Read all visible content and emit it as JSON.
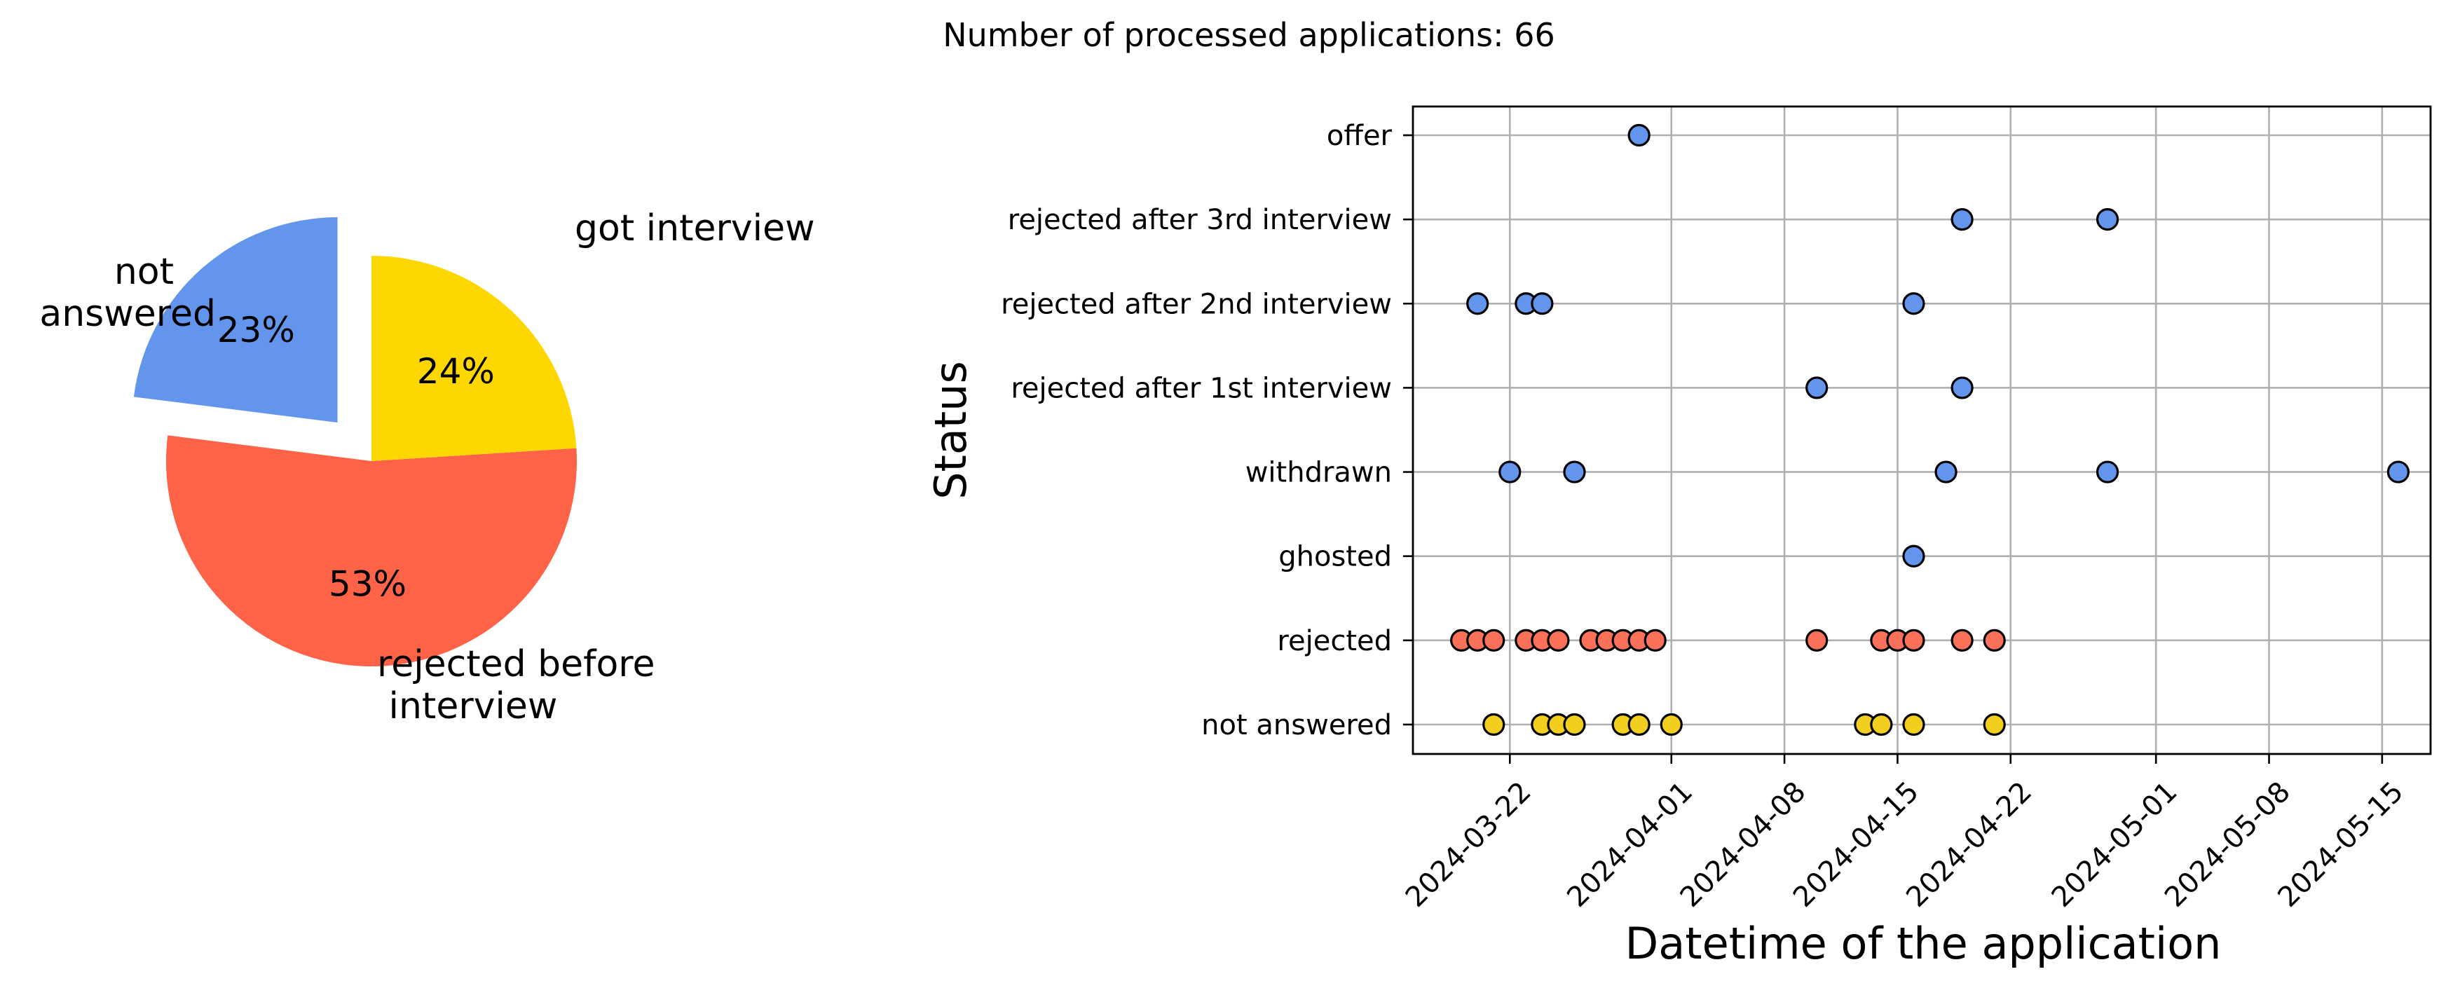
{
  "suptitle": "Number of processed applications: 66",
  "colors": {
    "got_interview": "#6495ED",
    "rejected": "#FF6347",
    "not_answered": "#FFD700",
    "scatter_rejected": "#FA7058",
    "scatter_not_answered": "#F2CE1F"
  },
  "chart_data": [
    {
      "type": "pie",
      "categories": [
        "got interview",
        "rejected before interview",
        "not answered"
      ],
      "category_lines": [
        [
          "got interview"
        ],
        [
          "rejected before",
          " interview"
        ],
        [
          "not",
          "answered"
        ]
      ],
      "values": [
        23,
        53,
        24
      ],
      "value_labels": [
        "23%",
        "53%",
        "24%"
      ],
      "exploded": [
        "got interview"
      ],
      "colors": [
        "#6495ED",
        "#FF6347",
        "#FFD700"
      ]
    },
    {
      "type": "scatter",
      "xlabel": "Datetime of the application",
      "ylabel": "Status",
      "grid": true,
      "xlim": [
        "2024-03-16",
        "2024-05-18"
      ],
      "x_ticks": [
        "2024-03-22",
        "2024-04-01",
        "2024-04-08",
        "2024-04-15",
        "2024-04-22",
        "2024-05-01",
        "2024-05-08",
        "2024-05-15"
      ],
      "y_categories": [
        "not answered",
        "rejected",
        "ghosted",
        "withdrawn",
        "rejected after 1st interview",
        "rejected after 2nd interview",
        "rejected after 3rd interview",
        "offer"
      ],
      "series": [
        {
          "category": "offer",
          "color": "#6495ED",
          "x": [
            "2024-03-30"
          ]
        },
        {
          "category": "rejected after 3rd interview",
          "color": "#6495ED",
          "x": [
            "2024-04-19",
            "2024-04-28"
          ]
        },
        {
          "category": "rejected after 2nd interview",
          "color": "#6495ED",
          "x": [
            "2024-03-20",
            "2024-03-23",
            "2024-03-24",
            "2024-04-16"
          ]
        },
        {
          "category": "rejected after 1st interview",
          "color": "#6495ED",
          "x": [
            "2024-04-10",
            "2024-04-19"
          ]
        },
        {
          "category": "withdrawn",
          "color": "#6495ED",
          "x": [
            "2024-03-22",
            "2024-03-26",
            "2024-04-18",
            "2024-04-28",
            "2024-05-16"
          ]
        },
        {
          "category": "ghosted",
          "color": "#6495ED",
          "x": [
            "2024-04-16"
          ]
        },
        {
          "category": "rejected",
          "color": "#FA7058",
          "x": [
            "2024-03-19",
            "2024-03-20",
            "2024-03-21",
            "2024-03-23",
            "2024-03-24",
            "2024-03-25",
            "2024-03-27",
            "2024-03-28",
            "2024-03-29",
            "2024-03-30",
            "2024-03-31",
            "2024-04-10",
            "2024-04-14",
            "2024-04-15",
            "2024-04-16",
            "2024-04-19",
            "2024-04-21"
          ]
        },
        {
          "category": "not answered",
          "color": "#F2CE1F",
          "x": [
            "2024-03-21",
            "2024-03-24",
            "2024-03-25",
            "2024-03-26",
            "2024-03-29",
            "2024-03-30",
            "2024-04-01",
            "2024-04-13",
            "2024-04-14",
            "2024-04-16",
            "2024-04-21"
          ]
        }
      ]
    }
  ]
}
